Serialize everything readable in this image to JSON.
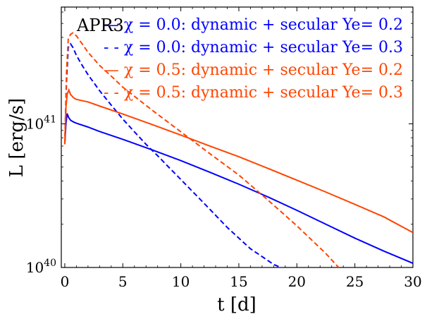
{
  "chart_data": {
    "type": "line",
    "title": "",
    "annotation": "APR3",
    "xlabel": "t [d]",
    "ylabel": "L [erg/s]",
    "xlim": [
      -0.3,
      30
    ],
    "ylim": [
      1e+40,
      6.5e+41
    ],
    "yscale": "log",
    "x_ticks": [
      0,
      5,
      10,
      15,
      20,
      25,
      30
    ],
    "x_tick_labels": [
      "0",
      "5",
      "10",
      "15",
      "20",
      "25",
      "30"
    ],
    "y_major_ticks": [
      1e+40,
      1e+41
    ],
    "y_tick_labels": [
      "10",
      "10"
    ],
    "y_tick_exponents": [
      "40",
      "41"
    ],
    "grid": false,
    "legend_position": "top-right",
    "series": [
      {
        "name": "— χ = 0.0: dynamic + secular Ye= 0.2",
        "color": "#0000ff",
        "dash": "solid",
        "x": [
          0.0,
          0.1,
          0.2,
          0.35,
          0.5,
          0.75,
          1,
          2,
          3,
          5,
          7.5,
          10,
          12.5,
          15,
          17.5,
          20,
          22.5,
          25,
          27.5,
          30
        ],
        "y": [
          7.2e+40,
          1e+41,
          1.18e+41,
          1.1e+41,
          1.06e+41,
          1.03e+41,
          1.01e+41,
          9.5e+40,
          8.85e+40,
          7.8e+40,
          6.6e+40,
          5.55e+40,
          4.6e+40,
          3.8e+40,
          3.1e+40,
          2.5e+40,
          2e+40,
          1.6e+40,
          1.3e+40,
          1.07e+40
        ]
      },
      {
        "name": "- - χ = 0.0: dynamic + secular Ye= 0.3",
        "color": "#0000ff",
        "dash": "dashed",
        "x": [
          0.0,
          0.15,
          0.3,
          0.5,
          0.7,
          1,
          1.5,
          2,
          3,
          4,
          5,
          6,
          7,
          8,
          9,
          10,
          12,
          14,
          16,
          18,
          18.6
        ],
        "y": [
          7.2e+40,
          2e+41,
          3.4e+41,
          3.6e+41,
          3.4e+41,
          3e+41,
          2.55e+41,
          2.2e+41,
          1.7e+41,
          1.35e+41,
          1.08e+41,
          8.8e+40,
          7.2e+40,
          6e+40,
          4.95e+40,
          4.1e+40,
          2.8e+40,
          1.9e+40,
          1.35e+40,
          1.05e+40,
          1e+40
        ]
      },
      {
        "name": "— χ = 0.5: dynamic + secular Ye= 0.2",
        "color": "#ff4500",
        "dash": "solid",
        "x": [
          0.0,
          0.1,
          0.2,
          0.35,
          0.5,
          0.75,
          1,
          2,
          3,
          5,
          7.5,
          10,
          12.5,
          15,
          17.5,
          20,
          22.5,
          25,
          27.5,
          30
        ],
        "y": [
          7.2e+40,
          1.3e+41,
          1.6e+41,
          1.72e+41,
          1.6e+41,
          1.52e+41,
          1.48e+41,
          1.42e+41,
          1.33e+41,
          1.17e+41,
          9.9e+40,
          8.35e+40,
          7e+40,
          5.9e+40,
          4.9e+40,
          4.05e+40,
          3.35e+40,
          2.75e+40,
          2.25e+40,
          1.75e+40
        ]
      },
      {
        "name": "- - χ = 0.5: dynamic + secular Ye= 0.3",
        "color": "#ff4500",
        "dash": "dashed",
        "x": [
          0.0,
          0.15,
          0.3,
          0.5,
          0.7,
          1,
          1.5,
          2,
          3,
          4,
          5,
          7.5,
          10,
          12.5,
          15,
          17.5,
          20,
          22.5,
          23.6
        ],
        "y": [
          7.2e+40,
          2.3e+41,
          3.9e+41,
          4.2e+41,
          4.3e+41,
          4.1e+41,
          3.6e+41,
          3.15e+41,
          2.55e+41,
          2.15e+41,
          1.8e+41,
          1.25e+41,
          8.8e+40,
          6.2e+40,
          4.4e+40,
          2.95e+40,
          1.95e+40,
          1.25e+40,
          1e+40
        ]
      }
    ]
  }
}
